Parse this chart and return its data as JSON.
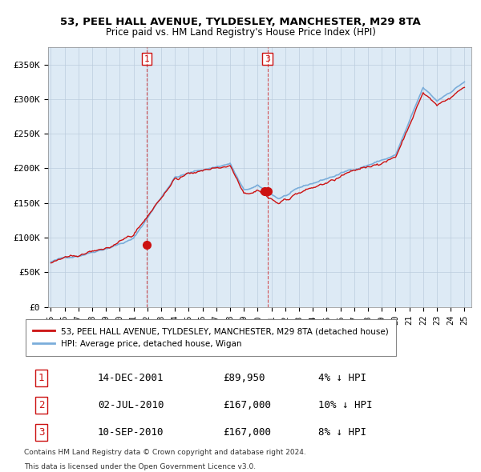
{
  "title": "53, PEEL HALL AVENUE, TYLDESLEY, MANCHESTER, M29 8TA",
  "subtitle": "Price paid vs. HM Land Registry's House Price Index (HPI)",
  "ylabel_ticks": [
    "£0",
    "£50K",
    "£100K",
    "£150K",
    "£200K",
    "£250K",
    "£300K",
    "£350K"
  ],
  "ytick_values": [
    0,
    50000,
    100000,
    150000,
    200000,
    250000,
    300000,
    350000
  ],
  "ylim": [
    0,
    375000
  ],
  "xlim_start": 1994.8,
  "xlim_end": 2025.5,
  "hpi_color": "#7aadda",
  "price_color": "#cc1111",
  "marker_color": "#cc1111",
  "chart_bg": "#ddeaf5",
  "sale_dates": [
    2001.96,
    2010.5,
    2010.71
  ],
  "sale_prices": [
    89950,
    167000,
    167000
  ],
  "legend_label_red": "53, PEEL HALL AVENUE, TYLDESLEY, MANCHESTER, M29 8TA (detached house)",
  "legend_label_blue": "HPI: Average price, detached house, Wigan",
  "table_data": [
    [
      "1",
      "14-DEC-2001",
      "£89,950",
      "4% ↓ HPI"
    ],
    [
      "2",
      "02-JUL-2010",
      "£167,000",
      "10% ↓ HPI"
    ],
    [
      "3",
      "10-SEP-2010",
      "£167,000",
      "8% ↓ HPI"
    ]
  ],
  "footnote1": "Contains HM Land Registry data © Crown copyright and database right 2024.",
  "footnote2": "This data is licensed under the Open Government Licence v3.0.",
  "background_color": "#ffffff",
  "grid_color": "#bbccdd"
}
